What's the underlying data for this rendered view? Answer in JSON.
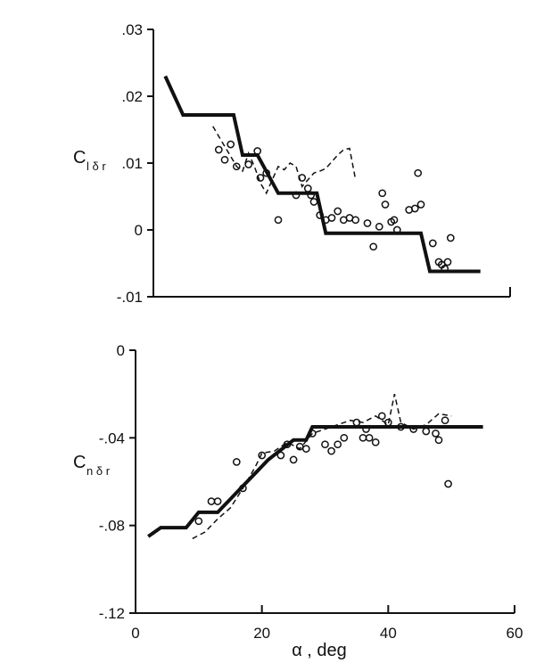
{
  "chart_data": [
    {
      "type": "line",
      "ylabel": {
        "main": "C",
        "sub": "l δ r"
      },
      "xlim": [
        0,
        60
      ],
      "ylim": [
        -0.01,
        0.03
      ],
      "yticks": [
        {
          "value": 0.03,
          "label": ".03"
        },
        {
          "value": 0.02,
          "label": ".02"
        },
        {
          "value": 0.01,
          "label": ".01"
        },
        {
          "value": 0,
          "label": "0"
        },
        {
          "value": -0.01,
          "label": "-.01"
        }
      ],
      "grid": false,
      "series": [
        {
          "style": "solid-thick",
          "x": [
            2,
            5,
            13.5,
            15,
            17.5,
            21,
            27.5,
            29,
            45,
            46.5,
            55
          ],
          "y": [
            0.023,
            0.0172,
            0.0172,
            0.0112,
            0.0112,
            0.0055,
            0.0055,
            -0.0005,
            -0.0005,
            -0.0062,
            -0.0062
          ]
        },
        {
          "style": "dashed",
          "x": [
            10,
            11,
            12,
            13,
            14,
            15,
            16,
            17,
            18,
            19,
            20,
            21,
            22,
            23,
            24,
            25,
            26,
            27,
            28,
            29,
            30,
            31,
            32,
            33,
            34
          ],
          "y": [
            0.0155,
            0.014,
            0.0125,
            0.011,
            0.0095,
            0.0088,
            0.0115,
            0.0095,
            0.007,
            0.0055,
            0.0075,
            0.0095,
            0.009,
            0.01,
            0.0095,
            0.0065,
            0.0075,
            0.0085,
            0.0088,
            0.0092,
            0.0102,
            0.0112,
            0.012,
            0.0122,
            0.0075
          ]
        },
        {
          "style": "circles",
          "x": [
            11,
            12,
            13,
            14,
            16,
            17.5,
            18,
            19,
            21,
            24,
            25,
            26,
            26.5,
            27,
            28,
            29,
            30,
            31,
            32,
            33,
            34,
            36,
            37,
            38,
            38.5,
            39,
            40,
            40.5,
            41,
            43,
            44,
            44.5,
            45,
            47,
            48,
            48.5,
            49,
            49.5,
            50
          ],
          "y": [
            0.012,
            0.0105,
            0.0128,
            0.0095,
            0.0098,
            0.0118,
            0.0078,
            0.0085,
            0.0015,
            0.0052,
            0.0078,
            0.0062,
            0.0052,
            0.0042,
            0.0022,
            0.0015,
            0.0018,
            0.0028,
            0.0015,
            0.0018,
            0.0015,
            0.001,
            -0.0025,
            0.0005,
            0.0055,
            0.0038,
            0.0012,
            0.0015,
            0,
            0.003,
            0.0032,
            0.0085,
            0.0038,
            -0.002,
            -0.0048,
            -0.0052,
            -0.0058,
            -0.0048,
            -0.0012
          ]
        }
      ]
    },
    {
      "type": "line",
      "ylabel": {
        "main": "C",
        "sub": "n δ r"
      },
      "xlabel": "α , deg",
      "xlim": [
        0,
        60
      ],
      "ylim": [
        -0.12,
        0
      ],
      "yticks": [
        {
          "value": 0,
          "label": "0"
        },
        {
          "value": -0.04,
          "label": "-.04"
        },
        {
          "value": -0.08,
          "label": "-.08"
        },
        {
          "value": -0.12,
          "label": "-.12"
        }
      ],
      "xticks": [
        {
          "value": 0,
          "label": "0"
        },
        {
          "value": 20,
          "label": "20"
        },
        {
          "value": 40,
          "label": "40"
        },
        {
          "value": 60,
          "label": "60"
        }
      ],
      "grid": false,
      "series": [
        {
          "style": "solid-thick",
          "x": [
            2,
            4,
            8,
            10,
            13,
            16,
            19,
            21,
            25,
            27,
            28,
            55
          ],
          "y": [
            -0.085,
            -0.081,
            -0.081,
            -0.074,
            -0.074,
            -0.065,
            -0.056,
            -0.05,
            -0.041,
            -0.041,
            -0.035,
            -0.035
          ]
        },
        {
          "style": "dashed",
          "x": [
            9,
            11,
            13,
            15,
            17,
            19,
            20,
            22,
            24,
            26,
            28,
            30,
            32,
            34,
            36,
            38,
            40,
            41,
            42,
            44,
            46,
            48,
            50
          ],
          "y": [
            -0.086,
            -0.083,
            -0.077,
            -0.072,
            -0.063,
            -0.053,
            -0.047,
            -0.046,
            -0.042,
            -0.045,
            -0.038,
            -0.036,
            -0.034,
            -0.032,
            -0.033,
            -0.03,
            -0.034,
            -0.02,
            -0.033,
            -0.036,
            -0.034,
            -0.029,
            -0.03
          ]
        },
        {
          "style": "circles",
          "x": [
            10,
            12,
            13,
            16,
            17,
            20,
            23,
            24,
            25,
            26,
            27,
            28,
            30,
            31,
            32,
            33,
            35,
            36,
            36.5,
            37,
            38,
            39,
            40,
            42,
            44,
            46,
            47.5,
            48,
            49,
            49.5
          ],
          "y": [
            -0.078,
            -0.069,
            -0.069,
            -0.051,
            -0.063,
            -0.048,
            -0.048,
            -0.043,
            -0.05,
            -0.044,
            -0.045,
            -0.038,
            -0.043,
            -0.046,
            -0.043,
            -0.04,
            -0.033,
            -0.04,
            -0.036,
            -0.04,
            -0.042,
            -0.03,
            -0.033,
            -0.035,
            -0.036,
            -0.037,
            -0.038,
            -0.041,
            -0.032,
            -0.061
          ]
        }
      ]
    }
  ]
}
